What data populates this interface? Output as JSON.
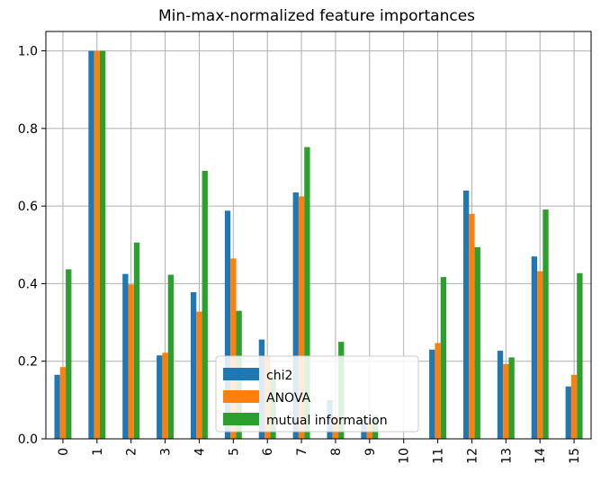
{
  "chart_data": {
    "type": "bar",
    "title": "Min-max-normalized feature importances",
    "categories": [
      "0",
      "1",
      "2",
      "3",
      "4",
      "5",
      "6",
      "7",
      "8",
      "9",
      "10",
      "11",
      "12",
      "13",
      "14",
      "15"
    ],
    "series": [
      {
        "name": "chi2",
        "color": "#1f77b4",
        "values": [
          0.165,
          1.0,
          0.425,
          0.215,
          0.378,
          0.588,
          0.256,
          0.635,
          0.1,
          0.05,
          0.0,
          0.23,
          0.64,
          0.227,
          0.47,
          0.135
        ]
      },
      {
        "name": "ANOVA",
        "color": "#ff7f0e",
        "values": [
          0.185,
          1.0,
          0.398,
          0.222,
          0.328,
          0.465,
          0.212,
          0.625,
          0.06,
          0.04,
          0.0,
          0.247,
          0.58,
          0.193,
          0.432,
          0.165
        ]
      },
      {
        "name": "mutual information",
        "color": "#2ca02c",
        "values": [
          0.437,
          1.0,
          0.506,
          0.423,
          0.691,
          0.33,
          0.16,
          0.752,
          0.25,
          0.06,
          0.0,
          0.417,
          0.494,
          0.21,
          0.591,
          0.427
        ]
      }
    ],
    "ylim": [
      0,
      1.05
    ],
    "yticks": [
      "0.0",
      "0.2",
      "0.4",
      "0.6",
      "0.8",
      "1.0"
    ],
    "grid": true,
    "legend_position": "lower-center"
  }
}
